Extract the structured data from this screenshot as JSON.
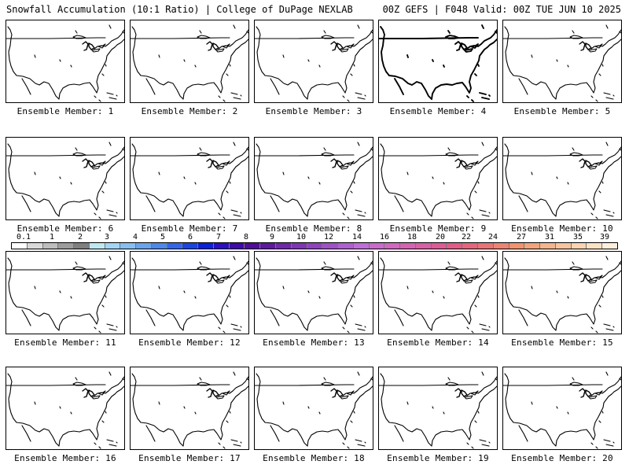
{
  "header": {
    "title_left": "Snowfall Accumulation (10:1 Ratio) | College of DuPage NEXLAB",
    "title_right": "00Z GEFS | F048 Valid: 00Z TUE JUN 10 2025"
  },
  "panels": [
    {
      "label": "Ensemble Member: 1"
    },
    {
      "label": "Ensemble Member: 2"
    },
    {
      "label": "Ensemble Member: 3"
    },
    {
      "label": "Ensemble Member: 4"
    },
    {
      "label": "Ensemble Member: 5"
    },
    {
      "label": "Ensemble Member: 6"
    },
    {
      "label": "Ensemble Member: 7"
    },
    {
      "label": "Ensemble Member: 8"
    },
    {
      "label": "Ensemble Member: 9"
    },
    {
      "label": "Ensemble Member: 10"
    },
    {
      "label": "Ensemble Member: 11"
    },
    {
      "label": "Ensemble Member: 12"
    },
    {
      "label": "Ensemble Member: 13"
    },
    {
      "label": "Ensemble Member: 14"
    },
    {
      "label": "Ensemble Member: 15"
    },
    {
      "label": "Ensemble Member: 16"
    },
    {
      "label": "Ensemble Member: 17"
    },
    {
      "label": "Ensemble Member: 18"
    },
    {
      "label": "Ensemble Member: 19"
    },
    {
      "label": "Ensemble Member: 20"
    }
  ],
  "colorbar": {
    "ticks": [
      "0.1",
      "1",
      "2",
      "3",
      "4",
      "5",
      "6",
      "7",
      "8",
      "9",
      "10",
      "12",
      "14",
      "16",
      "18",
      "20",
      "22",
      "24",
      "27",
      "31",
      "35",
      "39"
    ],
    "colors": [
      "#ffffff",
      "#d9d9d9",
      "#bdbdbd",
      "#9c9c9c",
      "#7f7f7f",
      "#bfe8f0",
      "#a3d5f5",
      "#86bff0",
      "#6aa4ec",
      "#4e88e8",
      "#3366e6",
      "#1a45e0",
      "#0a22d8",
      "#2a10c0",
      "#3d0ba8",
      "#4f0d98",
      "#5e1a9e",
      "#6e28a8",
      "#7e36b2",
      "#8e44bc",
      "#9e52c6",
      "#ae60d0",
      "#be6ed8",
      "#c86ccc",
      "#d068c0",
      "#d464b2",
      "#d860a4",
      "#dc5c96",
      "#e05c88",
      "#e4667e",
      "#e87476",
      "#ec8472",
      "#f0946e",
      "#f2a47c",
      "#f4b48c",
      "#f6c49e",
      "#f8d4b0",
      "#fae2c4",
      "#fcefdc"
    ]
  }
}
